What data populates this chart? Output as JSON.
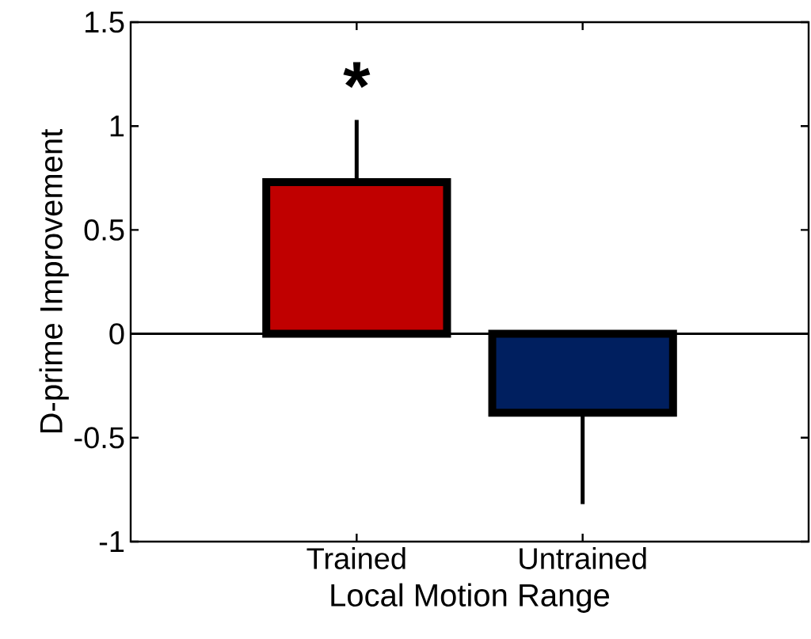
{
  "chart_data": {
    "type": "bar",
    "xlabel": "Local Motion Range",
    "ylabel": "D-prime Improvement",
    "categories": [
      "Trained",
      "Untrained"
    ],
    "values": [
      0.73,
      -0.38
    ],
    "colors": [
      "#c00000",
      "#001f5f"
    ],
    "errors": [
      [
        0.73,
        1.02
      ],
      [
        -0.81,
        -0.38
      ]
    ],
    "ylim": [
      -1,
      1.5
    ],
    "yticks": [
      -1,
      -0.5,
      0,
      0.5,
      1,
      1.5
    ],
    "ref_lines": [
      {
        "axis": "y",
        "value": 0
      }
    ],
    "annotations": [
      "*"
    ]
  }
}
